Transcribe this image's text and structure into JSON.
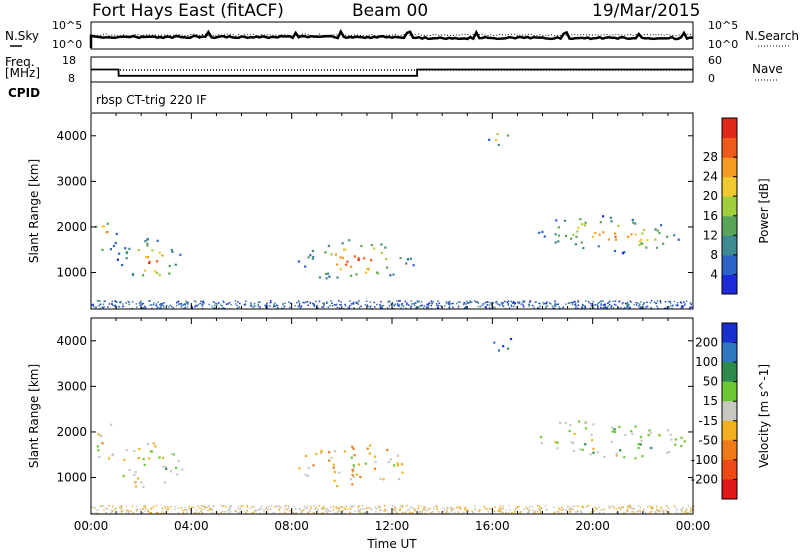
{
  "header": {
    "station": "Fort Hays East (fitACF)",
    "beam": "Beam 00",
    "date": "19/Mar/2015"
  },
  "top_panels": {
    "sky": {
      "left_label": "N.Sky",
      "right_label": "N.Search",
      "left_ticks": [
        "10^5",
        "10^0"
      ],
      "right_ticks": [
        "10^5",
        "10^0"
      ]
    },
    "freq": {
      "left_label_1": "Freq.",
      "left_label_2": "[MHz]",
      "left_ticks": [
        "18",
        "8"
      ],
      "right_label": "Nave",
      "right_ticks": [
        "60",
        "0"
      ],
      "freq_steps": [
        {
          "from_hour": 0,
          "to_hour": 1.1,
          "value": 13
        },
        {
          "from_hour": 1.1,
          "to_hour": 13.0,
          "value": 10
        },
        {
          "from_hour": 13.0,
          "to_hour": 24,
          "value": 13
        }
      ]
    },
    "cpid": {
      "label": "CPID",
      "program": "rbsp CT-trig 220 IF"
    }
  },
  "chart_data": [
    {
      "type": "heatmap",
      "title": "",
      "ylabel": "Slant Range [km]",
      "xlabel": "",
      "xlim": [
        0,
        24
      ],
      "ylim": [
        200,
        4500
      ],
      "yticks": [
        1000,
        2000,
        3000,
        4000
      ],
      "colorbar": {
        "label": "Power [dB]",
        "ticks": [
          "4",
          "8",
          "12",
          "16",
          "20",
          "24",
          "28"
        ],
        "colors": [
          "#1b2bd8",
          "#2d64c8",
          "#3e8a90",
          "#5aa45a",
          "#9fcf3c",
          "#f0c830",
          "#f59a22",
          "#ee5a1c",
          "#e02818"
        ]
      },
      "echo_regions": [
        {
          "x0": 0.0,
          "x1": 1.0,
          "y0": 1350,
          "y1": 2350,
          "level": 0.55
        },
        {
          "x0": 1.0,
          "x1": 3.8,
          "y0": 700,
          "y1": 1850,
          "level": 0.45
        },
        {
          "x0": 8.2,
          "x1": 12.9,
          "y0": 750,
          "y1": 1800,
          "level": 0.6
        },
        {
          "x0": 15.8,
          "x1": 16.8,
          "y0": 3750,
          "y1": 4200,
          "level": 0.4
        },
        {
          "x0": 17.5,
          "x1": 24.0,
          "y0": 1400,
          "y1": 2300,
          "level": 0.35
        }
      ]
    },
    {
      "type": "heatmap",
      "title": "",
      "ylabel": "Slant Range [km]",
      "xlabel": "Time UT",
      "xlim": [
        0,
        24
      ],
      "ylim": [
        200,
        4500
      ],
      "yticks": [
        1000,
        2000,
        3000,
        4000
      ],
      "xticks": [
        "00:00",
        "04:00",
        "08:00",
        "12:00",
        "16:00",
        "20:00",
        "00:00"
      ],
      "colorbar": {
        "label": "Velocity [m s^-1]",
        "ticks": [
          "200",
          "100",
          "50",
          "15",
          "-15",
          "-50",
          "-100",
          "-200"
        ],
        "colors": [
          "#1930d0",
          "#2f78c0",
          "#2e8a4a",
          "#6cc830",
          "#c8c8c0",
          "#f2b020",
          "#f07a18",
          "#ee4a18",
          "#e01818"
        ]
      },
      "echo_regions": [
        {
          "x0": 0.0,
          "x1": 1.0,
          "y0": 1350,
          "y1": 2350,
          "level": 0.5
        },
        {
          "x0": 1.0,
          "x1": 3.8,
          "y0": 700,
          "y1": 1850,
          "level": 0.5
        },
        {
          "x0": 8.2,
          "x1": 12.9,
          "y0": 750,
          "y1": 1800,
          "level": 0.6
        },
        {
          "x0": 15.8,
          "x1": 16.8,
          "y0": 3750,
          "y1": 4200,
          "level": 0.1
        },
        {
          "x0": 17.5,
          "x1": 24.0,
          "y0": 1400,
          "y1": 2300,
          "level": 0.45
        }
      ]
    }
  ]
}
